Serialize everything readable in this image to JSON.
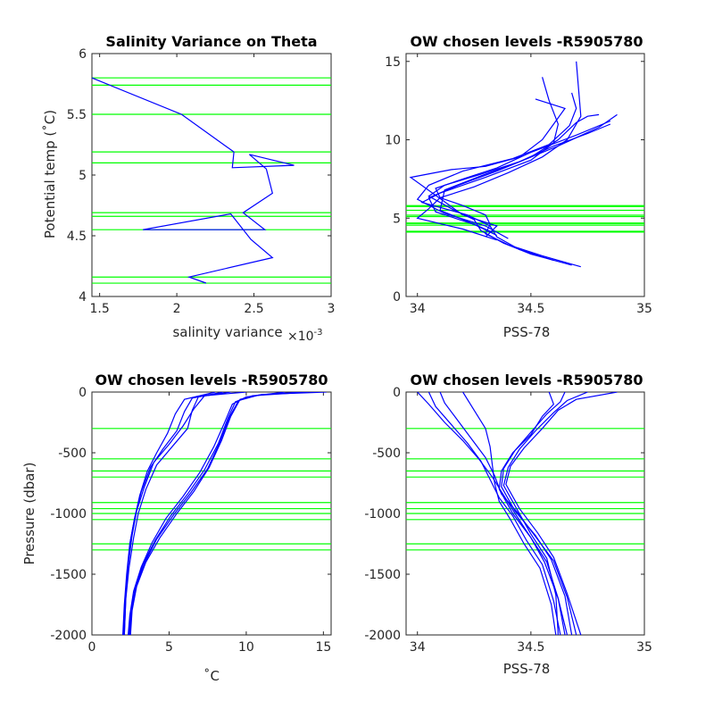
{
  "colors": {
    "profile": "#0000ff",
    "level": "#00ff00",
    "axis": "#262626"
  },
  "chart_data": [
    {
      "type": "line",
      "title": "Salinity Variance on Theta",
      "xlabel": "salinity variance",
      "x_exponent": "×10",
      "x_exponent_power": "-3",
      "ylabel": "Potential temp (˚C)",
      "xlim": [
        1.45,
        3.0
      ],
      "ylim": [
        4.0,
        6.0
      ],
      "xticks": [
        "1.5",
        "2",
        "2.5",
        "3"
      ],
      "yticks": [
        "4",
        "4.5",
        "5",
        "5.5",
        "6"
      ],
      "grid": false,
      "series": [
        {
          "x": [
            2.19,
            2.08,
            2.62,
            2.48,
            2.35,
            1.78,
            2.57,
            2.43,
            2.62,
            2.58,
            2.47,
            2.76,
            2.36,
            2.37,
            2.03,
            1.45
          ],
          "y": [
            4.11,
            4.16,
            4.32,
            4.47,
            4.68,
            4.55,
            4.55,
            4.69,
            4.85,
            5.05,
            5.17,
            5.08,
            5.06,
            5.19,
            5.5,
            5.8
          ]
        }
      ],
      "hlines": [
        4.11,
        4.16,
        4.55,
        4.66,
        4.69,
        5.1,
        5.19,
        5.5,
        5.74,
        5.8
      ]
    },
    {
      "type": "line",
      "title": "OW chosen levels -R5905780",
      "xlabel": "PSS-78",
      "ylabel": "",
      "xlim": [
        33.95,
        35.0
      ],
      "ylim": [
        0,
        15.5
      ],
      "xticks": [
        "34",
        "34.5",
        "35"
      ],
      "yticks": [
        "0",
        "5",
        "10",
        "15"
      ],
      "grid": false,
      "series": [
        {
          "x": [
            34.72,
            34.55,
            34.4,
            34.3,
            34.32,
            34.3,
            34.2,
            34.1,
            34.08,
            34.2,
            34.35,
            34.5,
            34.7,
            34.85
          ],
          "y": [
            1.9,
            2.6,
            3.3,
            4.0,
            4.6,
            5.2,
            5.8,
            6.3,
            6.9,
            7.5,
            8.2,
            9.2,
            10.3,
            11.2
          ]
        },
        {
          "x": [
            34.68,
            34.5,
            34.38,
            34.28,
            34.25,
            34.15,
            34.05,
            34.12,
            34.28,
            34.45,
            34.62,
            34.8,
            34.88
          ],
          "y": [
            2.0,
            2.7,
            3.4,
            4.2,
            4.9,
            5.6,
            6.4,
            7.1,
            7.8,
            8.6,
            9.6,
            10.8,
            11.6
          ]
        },
        {
          "x": [
            34.6,
            34.45,
            34.35,
            34.32,
            34.22,
            34.02,
            34.1,
            34.3,
            34.5,
            34.6,
            34.62,
            34.58,
            34.55
          ],
          "y": [
            2.3,
            3.0,
            3.8,
            4.5,
            5.2,
            6.0,
            6.6,
            7.6,
            8.7,
            9.8,
            11.0,
            12.5,
            14.0
          ]
        },
        {
          "x": [
            34.35,
            34.2,
            34.0,
            34.05,
            34.1,
            34.25,
            34.4,
            34.55,
            34.66,
            34.72,
            34.7
          ],
          "y": [
            3.6,
            4.3,
            5.0,
            5.6,
            6.3,
            7.0,
            7.9,
            8.9,
            10.0,
            11.5,
            15.0
          ]
        },
        {
          "x": [
            34.3,
            34.35,
            34.2,
            33.97,
            34.15,
            34.3,
            34.45,
            34.55,
            34.6,
            34.65,
            34.52
          ],
          "y": [
            3.8,
            4.5,
            5.2,
            7.6,
            8.1,
            8.3,
            8.9,
            10.0,
            11.0,
            12.0,
            12.6
          ]
        },
        {
          "x": [
            34.35,
            34.25,
            34.08,
            34.05,
            34.18,
            34.35,
            34.5,
            34.62,
            34.7,
            34.75,
            34.8
          ],
          "y": [
            3.9,
            4.6,
            5.4,
            6.3,
            7.1,
            8.0,
            8.9,
            10.0,
            11.1,
            11.5,
            11.6
          ]
        },
        {
          "x": [
            34.4,
            34.3,
            34.12,
            34.0,
            34.05,
            34.2,
            34.42,
            34.58,
            34.67,
            34.7,
            34.68
          ],
          "y": [
            3.7,
            4.5,
            5.3,
            6.2,
            7.1,
            8.0,
            8.8,
            9.7,
            10.9,
            12.0,
            13.0
          ]
        },
        {
          "x": [
            34.33,
            34.22,
            34.1,
            34.12,
            34.28,
            34.45,
            34.6,
            34.75,
            34.85
          ],
          "y": [
            4.1,
            4.8,
            5.5,
            6.8,
            7.7,
            8.6,
            9.6,
            10.4,
            11.0
          ]
        }
      ],
      "hlines": [
        4.11,
        4.16,
        4.55,
        4.66,
        4.69,
        5.1,
        5.19,
        5.5,
        5.74,
        5.8
      ]
    },
    {
      "type": "line",
      "title": "OW chosen levels -R5905780",
      "xlabel": "˚C",
      "ylabel": "Pressure (dbar)",
      "xlim": [
        0,
        15.5
      ],
      "ylim": [
        -2000,
        0
      ],
      "xticks": [
        "0",
        "5",
        "10",
        "15"
      ],
      "yticks": [
        "-2000",
        "-1500",
        "-1000",
        "-500",
        "0"
      ],
      "grid": false,
      "series": [
        {
          "x": [
            15.2,
            11.0,
            9.6,
            9.0,
            8.4,
            7.6,
            6.6,
            5.5,
            4.4,
            3.5,
            2.9,
            2.6,
            2.5
          ],
          "y": [
            0,
            -20,
            -60,
            -200,
            -400,
            -620,
            -820,
            -1000,
            -1200,
            -1400,
            -1600,
            -1800,
            -2000
          ]
        },
        {
          "x": [
            14.0,
            10.4,
            9.3,
            8.8,
            8.2,
            7.3,
            6.2,
            5.1,
            4.1,
            3.3,
            2.8,
            2.5,
            2.4
          ],
          "y": [
            0,
            -30,
            -80,
            -220,
            -420,
            -640,
            -840,
            -1020,
            -1220,
            -1420,
            -1620,
            -1820,
            -2000
          ]
        },
        {
          "x": [
            12.5,
            10.0,
            9.1,
            8.6,
            7.9,
            7.0,
            5.9,
            4.8,
            3.9,
            3.2,
            2.7,
            2.45,
            2.35
          ],
          "y": [
            0,
            -40,
            -100,
            -250,
            -450,
            -660,
            -860,
            -1040,
            -1240,
            -1440,
            -1640,
            -1840,
            -2000
          ]
        },
        {
          "x": [
            13.5,
            10.8,
            9.5,
            8.9,
            8.3,
            7.5,
            6.4,
            5.3,
            4.2,
            3.4,
            2.85,
            2.55,
            2.45
          ],
          "y": [
            0,
            -25,
            -70,
            -210,
            -410,
            -630,
            -830,
            -1010,
            -1210,
            -1410,
            -1610,
            -1810,
            -2000
          ]
        },
        {
          "x": [
            9.0,
            6.9,
            6.5,
            6.2,
            5.2,
            4.2,
            3.5,
            3.0,
            2.7,
            2.4,
            2.2,
            2.1
          ],
          "y": [
            0,
            -40,
            -150,
            -300,
            -450,
            -600,
            -800,
            -1000,
            -1200,
            -1450,
            -1700,
            -2000
          ]
        },
        {
          "x": [
            8.5,
            6.5,
            6.0,
            5.5,
            4.6,
            3.8,
            3.2,
            2.8,
            2.5,
            2.3,
            2.15,
            2.05
          ],
          "y": [
            0,
            -50,
            -160,
            -320,
            -470,
            -620,
            -820,
            -1020,
            -1220,
            -1470,
            -1720,
            -2000
          ]
        },
        {
          "x": [
            10.0,
            7.3,
            6.6,
            5.9,
            5.0,
            4.0,
            3.4,
            2.9,
            2.6,
            2.35,
            2.2,
            2.1
          ],
          "y": [
            0,
            -30,
            -140,
            -280,
            -430,
            -580,
            -780,
            -980,
            -1180,
            -1430,
            -1680,
            -2000
          ]
        },
        {
          "x": [
            8.0,
            6.0,
            5.4,
            4.9,
            4.2,
            3.6,
            3.1,
            2.75,
            2.45,
            2.25,
            2.1,
            2.0
          ],
          "y": [
            0,
            -60,
            -180,
            -340,
            -500,
            -650,
            -850,
            -1050,
            -1250,
            -1500,
            -1750,
            -2000
          ]
        }
      ],
      "hlines": [
        -300,
        -550,
        -650,
        -700,
        -910,
        -960,
        -1000,
        -1050,
        -1250,
        -1300
      ]
    },
    {
      "type": "line",
      "title": "OW chosen levels -R5905780",
      "xlabel": "PSS-78",
      "ylabel": "",
      "xlim": [
        33.95,
        35.0
      ],
      "ylim": [
        -2000,
        0
      ],
      "xticks": [
        "34",
        "34.5",
        "35"
      ],
      "yticks": [
        "-2000",
        "-1500",
        "-1000",
        "-500",
        "0"
      ],
      "grid": false,
      "series": [
        {
          "x": [
            34.0,
            34.05,
            34.12,
            34.2,
            34.27,
            34.33,
            34.38,
            34.43,
            34.5,
            34.57,
            34.62,
            34.66
          ],
          "y": [
            0,
            -100,
            -250,
            -400,
            -550,
            -700,
            -850,
            -1000,
            -1200,
            -1400,
            -1700,
            -2000
          ]
        },
        {
          "x": [
            34.05,
            34.08,
            34.15,
            34.22,
            34.28,
            34.32,
            34.36,
            34.42,
            34.48,
            34.55,
            34.6,
            34.63
          ],
          "y": [
            0,
            -120,
            -270,
            -420,
            -570,
            -720,
            -870,
            -1020,
            -1220,
            -1420,
            -1720,
            -2000
          ]
        },
        {
          "x": [
            34.1,
            34.12,
            34.18,
            34.24,
            34.3,
            34.34,
            34.37,
            34.44,
            34.52,
            34.6,
            34.66,
            34.7
          ],
          "y": [
            0,
            -90,
            -240,
            -390,
            -540,
            -690,
            -840,
            -990,
            -1190,
            -1390,
            -1690,
            -2000
          ]
        },
        {
          "x": [
            34.58,
            34.6,
            34.55,
            34.5,
            34.42,
            34.37,
            34.36,
            34.42,
            34.5,
            34.56,
            34.62,
            34.65
          ],
          "y": [
            0,
            -100,
            -200,
            -350,
            -500,
            -650,
            -800,
            -1000,
            -1200,
            -1400,
            -1700,
            -2000
          ]
        },
        {
          "x": [
            34.65,
            34.63,
            34.57,
            34.5,
            34.43,
            34.38,
            34.37,
            34.43,
            34.52,
            34.59,
            34.65,
            34.68
          ],
          "y": [
            0,
            -80,
            -180,
            -330,
            -480,
            -630,
            -780,
            -980,
            -1180,
            -1380,
            -1680,
            -2000
          ]
        },
        {
          "x": [
            34.75,
            34.66,
            34.6,
            34.52,
            34.45,
            34.4,
            34.38,
            34.44,
            34.5,
            34.57,
            34.61,
            34.62
          ],
          "y": [
            0,
            -70,
            -170,
            -320,
            -470,
            -620,
            -770,
            -970,
            -1170,
            -1370,
            -1670,
            -2000
          ]
        },
        {
          "x": [
            34.88,
            34.7,
            34.62,
            34.55,
            34.47,
            34.41,
            34.39,
            34.45,
            34.53,
            34.6,
            34.66,
            34.72
          ],
          "y": [
            0,
            -60,
            -150,
            -300,
            -460,
            -610,
            -760,
            -960,
            -1160,
            -1360,
            -1660,
            -2000
          ]
        },
        {
          "x": [
            34.2,
            34.25,
            34.3,
            34.32,
            34.33,
            34.34,
            34.36,
            34.41,
            34.47,
            34.54,
            34.59,
            34.61
          ],
          "y": [
            0,
            -150,
            -300,
            -450,
            -600,
            -750,
            -900,
            -1050,
            -1250,
            -1450,
            -1750,
            -2000
          ]
        }
      ],
      "hlines": [
        -300,
        -550,
        -650,
        -700,
        -910,
        -960,
        -1000,
        -1050,
        -1250,
        -1300
      ]
    }
  ]
}
